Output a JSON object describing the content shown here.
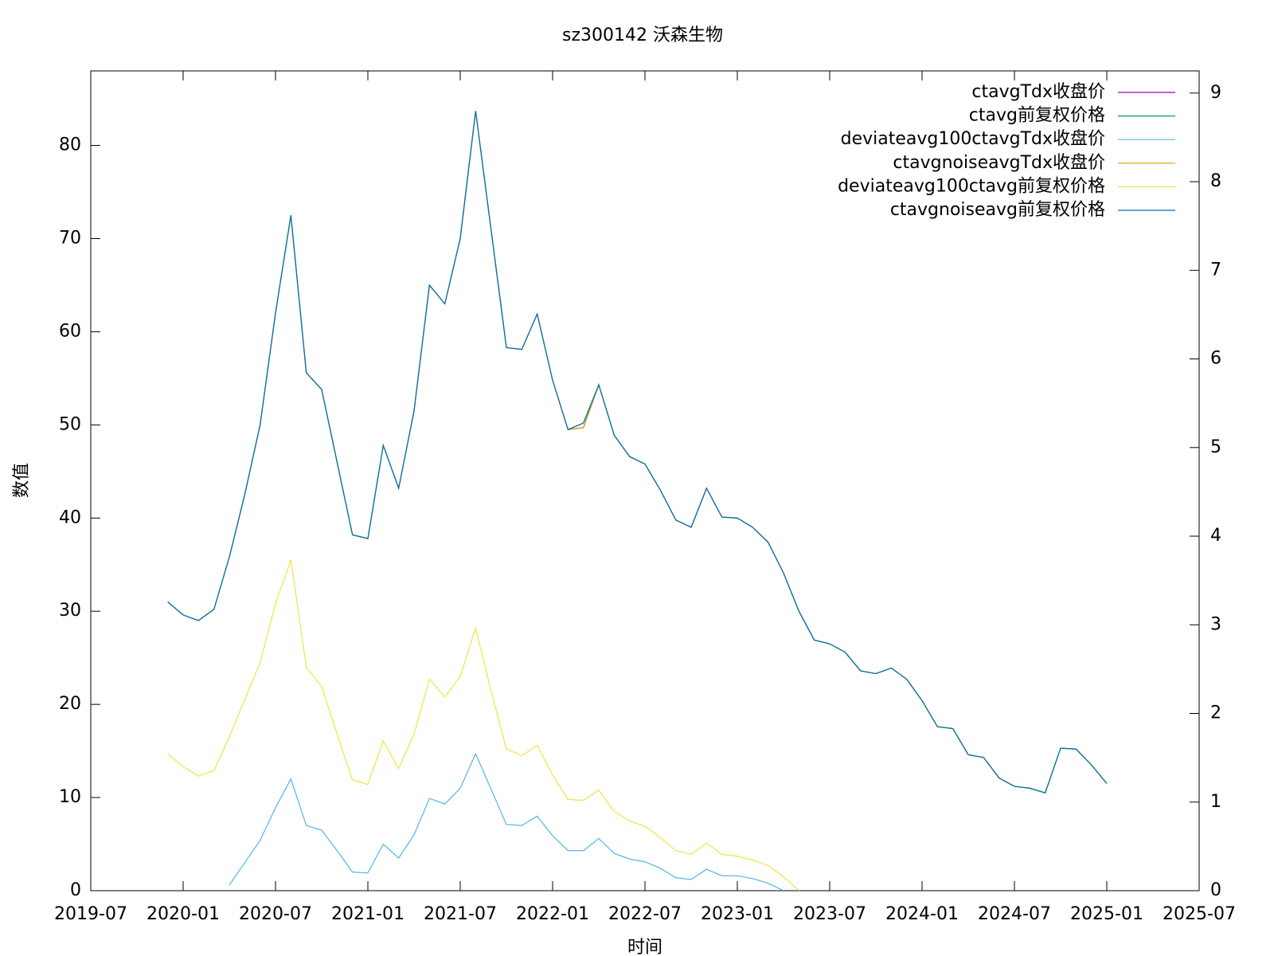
{
  "chart_data": {
    "type": "line",
    "title": "sz300142 沃森生物",
    "x_label": "时间",
    "y_label": "数值",
    "x": [
      "2019-12",
      "2020-01",
      "2020-02",
      "2020-03",
      "2020-04",
      "2020-05",
      "2020-06",
      "2020-07",
      "2020-08",
      "2020-09",
      "2020-10",
      "2020-11",
      "2020-12",
      "2021-01",
      "2021-02",
      "2021-03",
      "2021-04",
      "2021-05",
      "2021-06",
      "2021-07",
      "2021-08",
      "2021-09",
      "2021-10",
      "2021-11",
      "2021-12",
      "2022-01",
      "2022-02",
      "2022-03",
      "2022-04",
      "2022-05",
      "2022-06",
      "2022-07",
      "2022-08",
      "2022-09",
      "2022-10",
      "2022-11",
      "2022-12",
      "2023-01",
      "2023-02",
      "2023-03",
      "2023-04",
      "2023-05",
      "2023-06",
      "2023-07",
      "2023-08",
      "2023-09",
      "2023-10",
      "2023-11",
      "2023-12",
      "2024-01",
      "2024-02",
      "2024-03",
      "2024-04",
      "2024-05",
      "2024-06",
      "2024-07",
      "2024-08",
      "2024-09",
      "2024-10",
      "2024-11",
      "2024-12",
      "2025-01"
    ],
    "xlim": [
      "2019-07",
      "2025-07"
    ],
    "xticks": [
      "2019-07",
      "2020-01",
      "2020-07",
      "2021-01",
      "2021-07",
      "2022-01",
      "2022-07",
      "2023-01",
      "2023-07",
      "2024-01",
      "2024-07",
      "2025-01",
      "2025-07"
    ],
    "ylim": [
      0,
      88
    ],
    "yticks": [
      0,
      10,
      20,
      30,
      40,
      50,
      60,
      70,
      80
    ],
    "y2lim": [
      0,
      9.25
    ],
    "y2ticks": [
      0,
      1,
      2,
      3,
      4,
      5,
      6,
      7,
      8,
      9
    ],
    "grid": false,
    "legend": "top-right",
    "series": [
      {
        "name": "ctavgTdx收盘价",
        "color": "#9400d3",
        "values": [
          31.0,
          29.6,
          29.0,
          30.2,
          35.8,
          42.5,
          50.0,
          62.0,
          72.5,
          55.6,
          53.8,
          46.0,
          38.2,
          37.8,
          47.8,
          43.2,
          51.5,
          65.0,
          63.0,
          70.0,
          83.7,
          71.0,
          58.3,
          58.1,
          61.9,
          54.8,
          49.5,
          49.7,
          54.3,
          48.9,
          46.6,
          45.8,
          43.0,
          39.8,
          39.0,
          43.2,
          40.1,
          40.0,
          39.0,
          37.4,
          34.1,
          30.0,
          26.9,
          26.5,
          25.6,
          23.6,
          23.3,
          23.9,
          22.7,
          20.4,
          17.6,
          17.4,
          14.6,
          14.3,
          12.1,
          11.2,
          11.0,
          10.5,
          15.3,
          15.2,
          13.5,
          11.5
        ]
      },
      {
        "name": "ctavg前复权价格",
        "color": "#009e73",
        "values": [
          31.0,
          29.6,
          29.0,
          30.2,
          35.8,
          42.5,
          50.0,
          62.0,
          72.5,
          55.6,
          53.8,
          46.0,
          38.2,
          37.8,
          47.8,
          43.2,
          51.5,
          65.0,
          63.0,
          70.0,
          83.7,
          71.0,
          58.3,
          58.1,
          61.9,
          54.8,
          49.5,
          50.2,
          54.3,
          48.9,
          46.6,
          45.8,
          43.0,
          39.8,
          39.0,
          43.2,
          40.1,
          40.0,
          39.0,
          37.4,
          34.1,
          30.0,
          26.9,
          26.5,
          25.6,
          23.6,
          23.3,
          23.9,
          22.7,
          20.4,
          17.6,
          17.4,
          14.6,
          14.3,
          12.1,
          11.2,
          11.0,
          10.5,
          15.3,
          15.2,
          13.5,
          11.5
        ]
      },
      {
        "name": "deviateavg100ctavgTdx收盘价",
        "color": "#56b4e9",
        "values": [
          null,
          null,
          null,
          null,
          0.6,
          3.0,
          5.4,
          8.9,
          12.0,
          7.0,
          6.5,
          4.3,
          2.0,
          1.9,
          5.0,
          3.5,
          6.0,
          9.9,
          9.3,
          11.0,
          14.7,
          10.9,
          7.1,
          7.0,
          8.0,
          5.9,
          4.3,
          4.3,
          5.6,
          4.0,
          3.4,
          3.1,
          2.4,
          1.4,
          1.2,
          2.3,
          1.6,
          1.6,
          1.3,
          0.8,
          0,
          null,
          null,
          null,
          null,
          null,
          null,
          null,
          null,
          null,
          null,
          null,
          null,
          null,
          null,
          null,
          null,
          null,
          null,
          null,
          null,
          null
        ]
      },
      {
        "name": "ctavgnoiseavgTdx收盘价",
        "color": "#e69f00",
        "values": [
          31.0,
          29.6,
          29.0,
          30.2,
          35.8,
          42.5,
          50.0,
          62.0,
          72.5,
          55.6,
          53.8,
          46.0,
          38.2,
          37.8,
          47.8,
          43.2,
          51.5,
          65.0,
          63.0,
          70.0,
          83.7,
          71.0,
          58.3,
          58.1,
          61.9,
          54.8,
          49.5,
          49.7,
          54.3,
          48.9,
          46.6,
          45.8,
          43.0,
          39.8,
          39.0,
          43.2,
          40.1,
          40.0,
          39.0,
          37.4,
          34.1,
          30.0,
          26.9,
          26.5,
          25.6,
          23.6,
          23.3,
          23.9,
          22.7,
          20.4,
          17.6,
          17.4,
          14.6,
          14.3,
          12.1,
          11.2,
          11.0,
          10.5,
          15.3,
          15.2,
          13.5,
          11.5
        ]
      },
      {
        "name": "deviateavg100ctavg前复权价格",
        "color": "#f0e442",
        "values": [
          14.7,
          13.3,
          12.3,
          12.9,
          16.5,
          20.5,
          24.5,
          30.8,
          35.5,
          24.0,
          21.9,
          16.8,
          11.9,
          11.4,
          16.1,
          13.1,
          16.8,
          22.7,
          20.8,
          23.0,
          28.2,
          21.5,
          15.2,
          14.5,
          15.6,
          12.4,
          9.8,
          9.7,
          10.8,
          8.5,
          7.5,
          6.9,
          5.7,
          4.3,
          3.9,
          5.1,
          3.9,
          3.7,
          3.3,
          2.7,
          1.5,
          0,
          null,
          null,
          null,
          null,
          null,
          null,
          null,
          null,
          null,
          null,
          null,
          null,
          null,
          null,
          null,
          null,
          null,
          null,
          null,
          null
        ]
      },
      {
        "name": "ctavgnoiseavg前复权价格",
        "color": "#0072b2",
        "values": [
          31.0,
          29.6,
          29.0,
          30.2,
          35.8,
          42.5,
          50.0,
          62.0,
          72.5,
          55.6,
          53.8,
          46.0,
          38.2,
          37.8,
          47.8,
          43.2,
          51.5,
          65.0,
          63.0,
          70.0,
          83.7,
          71.0,
          58.3,
          58.1,
          61.9,
          54.8,
          49.5,
          50.2,
          54.3,
          48.9,
          46.6,
          45.8,
          43.0,
          39.8,
          39.0,
          43.2,
          40.1,
          40.0,
          39.0,
          37.4,
          34.1,
          30.0,
          26.9,
          26.5,
          25.6,
          23.6,
          23.3,
          23.9,
          22.7,
          20.4,
          17.6,
          17.4,
          14.6,
          14.3,
          12.1,
          11.2,
          11.0,
          10.5,
          15.3,
          15.2,
          13.5,
          11.5
        ]
      }
    ]
  }
}
